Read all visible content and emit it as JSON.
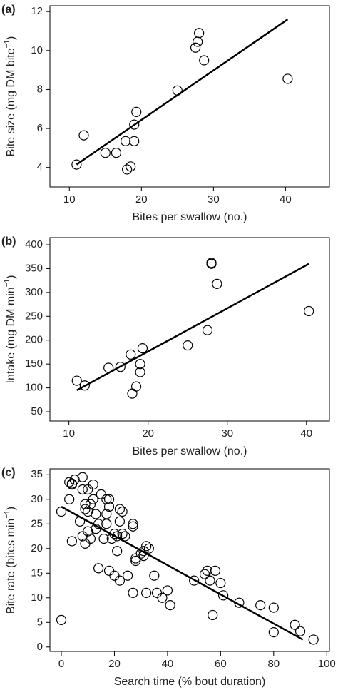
{
  "chart_data": [
    {
      "type": "scatter",
      "panel_label": "(a)",
      "xlabel": "Bites per swallow (no.)",
      "ylabel": [
        "Bite size (mg DM bite",
        "−1",
        ")"
      ],
      "x": [
        11,
        12,
        15,
        16.5,
        17.8,
        18,
        18.5,
        19,
        19,
        19.3,
        25,
        27.5,
        27.8,
        28,
        28.7,
        40.3
      ],
      "y": [
        4.15,
        5.65,
        4.75,
        4.75,
        5.35,
        3.9,
        4.05,
        5.35,
        6.2,
        6.85,
        7.95,
        10.15,
        10.45,
        10.9,
        9.5,
        8.55
      ],
      "fit": {
        "x": [
          11,
          40.3
        ],
        "y": [
          4.15,
          11.6
        ]
      },
      "xlim": [
        7.3,
        46.1
      ],
      "ylim": [
        3.0,
        12.3
      ],
      "xticks": [
        10,
        20,
        30,
        40
      ],
      "yticks": [
        4,
        6,
        8,
        10,
        12
      ],
      "color": "#000000"
    },
    {
      "type": "scatter",
      "panel_label": "(b)",
      "xlabel": "Bites per swallow (no.)",
      "ylabel": [
        "Intake (mg DM min",
        "−1",
        ")"
      ],
      "x": [
        11,
        12,
        15,
        16.5,
        17.8,
        18,
        18.5,
        19,
        19,
        19.3,
        25,
        27.5,
        28,
        28,
        28.7,
        40.3
      ],
      "y": [
        115,
        105,
        142,
        144,
        170,
        88,
        103,
        150,
        133,
        183,
        189,
        221,
        360,
        362,
        318,
        261
      ],
      "fit": {
        "x": [
          11,
          40.3
        ],
        "y": [
          95,
          360
        ]
      },
      "xlim": [
        7.6,
        42.9
      ],
      "ylim": [
        30.6,
        415
      ],
      "xticks": [
        10,
        20,
        30,
        40
      ],
      "yticks": [
        50,
        100,
        150,
        200,
        250,
        300,
        350,
        400
      ],
      "color": "#000000"
    },
    {
      "type": "scatter",
      "panel_label": "(c)",
      "xlabel": "Search time (% bout duration)",
      "ylabel": [
        "Bite rate (bites min",
        "−1",
        ")"
      ],
      "x": [
        0,
        0,
        3,
        3,
        4,
        4,
        4,
        5,
        7,
        8,
        8,
        8,
        9,
        9,
        9,
        10,
        10,
        10,
        11,
        11,
        12,
        12,
        13,
        13,
        14,
        14,
        15,
        16,
        17,
        17,
        17,
        18,
        18,
        18,
        19,
        20,
        20,
        21,
        21,
        22,
        22,
        22,
        23,
        23,
        24,
        25,
        27,
        27,
        27,
        28,
        28,
        30,
        31,
        31,
        32,
        32,
        33,
        35,
        36,
        38,
        40,
        41,
        50,
        54,
        55,
        56,
        57,
        58,
        60,
        61,
        67,
        75,
        80,
        80,
        88,
        90,
        95
      ],
      "y": [
        27.5,
        5.5,
        30,
        33.5,
        33,
        33.2,
        21.5,
        34,
        25.5,
        34.5,
        32,
        22.5,
        29,
        28,
        21,
        32,
        27.5,
        23.5,
        29,
        22,
        30,
        33,
        24,
        27,
        16,
        25,
        31,
        22,
        30,
        27,
        25,
        30,
        28.5,
        15.5,
        22,
        23,
        14.5,
        22.5,
        19.5,
        28,
        13.5,
        25.5,
        27.5,
        23,
        22.5,
        14.5,
        25,
        24.5,
        11,
        18,
        17.5,
        19,
        19.5,
        18.5,
        11,
        20.5,
        20,
        14.5,
        11,
        10,
        11.5,
        8.5,
        13.5,
        14.8,
        15.5,
        13.5,
        6.5,
        15.5,
        13,
        10.5,
        9,
        8.5,
        8,
        3,
        4.5,
        3.2,
        1.5
      ],
      "fit": {
        "x": [
          0,
          91
        ],
        "y": [
          28.5,
          1.5
        ]
      },
      "xlim": [
        -4.3,
        101
      ],
      "ylim": [
        -0.9,
        36.2
      ],
      "xticks": [
        0,
        20,
        40,
        60,
        80,
        100
      ],
      "yticks": [
        0,
        5,
        10,
        15,
        20,
        25,
        30,
        35
      ],
      "color": "#000000"
    }
  ]
}
